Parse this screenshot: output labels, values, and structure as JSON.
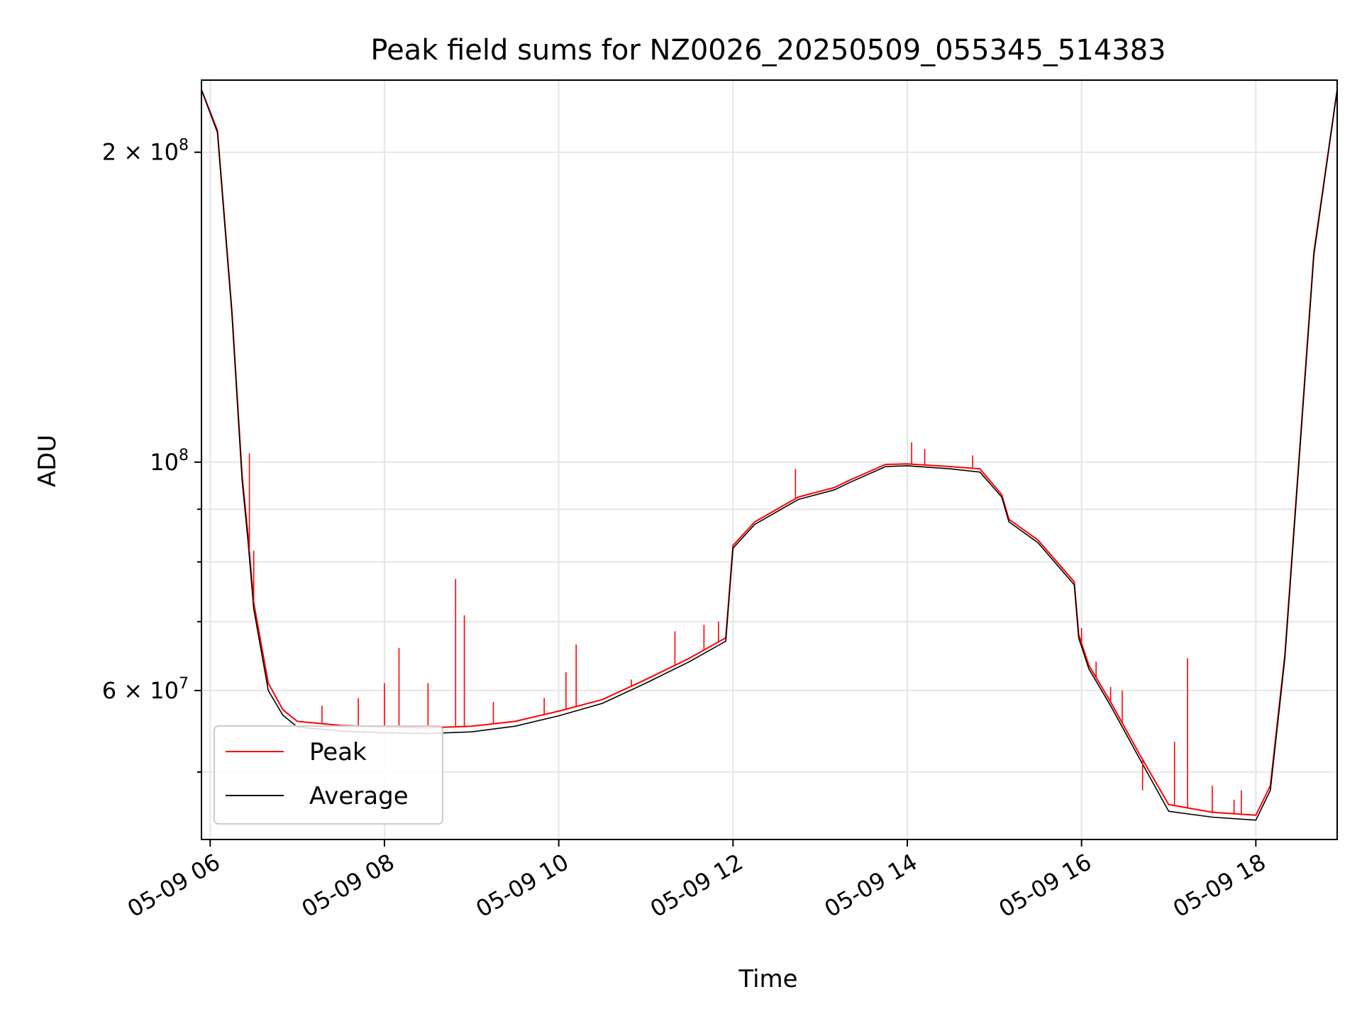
{
  "chart_data": {
    "type": "line",
    "title": "Peak field sums for NZ0026_20250509_055345_514383",
    "xlabel": "Time",
    "ylabel": "ADU",
    "y_scale": "log",
    "ylim": [
      43000000,
      235000000
    ],
    "xlim": [
      "05-09 05:54",
      "05-09 18:56"
    ],
    "x_ticks": [
      {
        "t": "05-09 06:00",
        "label": "05-09 06"
      },
      {
        "t": "05-09 08:00",
        "label": "05-09 08"
      },
      {
        "t": "05-09 10:00",
        "label": "05-09 10"
      },
      {
        "t": "05-09 12:00",
        "label": "05-09 12"
      },
      {
        "t": "05-09 14:00",
        "label": "05-09 14"
      },
      {
        "t": "05-09 16:00",
        "label": "05-09 16"
      },
      {
        "t": "05-09 18:00",
        "label": "05-09 18"
      }
    ],
    "y_major_ticks": [
      {
        "value": 60000000,
        "base": "6 × 10",
        "exp": "7"
      },
      {
        "value": 100000000,
        "base": "10",
        "exp": "8"
      },
      {
        "value": 200000000,
        "base": "2 × 10",
        "exp": "8"
      }
    ],
    "y_minor_ticks": [
      50000000,
      70000000,
      80000000,
      90000000
    ],
    "grid": true,
    "legend_position": "lower-left",
    "series": [
      {
        "name": "Peak",
        "color": "#ff0000",
        "x": [
          "05-09 05:54",
          "05-09 06:05",
          "05-09 06:15",
          "05-09 06:22",
          "05-09 06:26",
          "05-09 06:30",
          "05-09 06:40",
          "05-09 06:50",
          "05-09 07:00",
          "05-09 07:30",
          "05-09 08:00",
          "05-09 08:30",
          "05-09 09:00",
          "05-09 09:30",
          "05-09 10:00",
          "05-09 10:30",
          "05-09 11:00",
          "05-09 11:30",
          "05-09 11:55",
          "05-09 12:00",
          "05-09 12:15",
          "05-09 12:45",
          "05-09 13:10",
          "05-09 13:20",
          "05-09 13:45",
          "05-09 14:00",
          "05-09 14:30",
          "05-09 14:50",
          "05-09 15:05",
          "05-09 15:10",
          "05-09 15:30",
          "05-09 15:55",
          "05-09 15:58",
          "05-09 16:05",
          "05-09 16:20",
          "05-09 16:40",
          "05-09 17:00",
          "05-09 17:30",
          "05-09 17:50",
          "05-09 18:00",
          "05-09 18:10",
          "05-09 18:20",
          "05-09 18:40",
          "05-09 18:56"
        ],
        "y": [
          230000000,
          210000000,
          140000000,
          97000000,
          85000000,
          73000000,
          61000000,
          57500000,
          56000000,
          55500000,
          55300000,
          55200000,
          55400000,
          56000000,
          57300000,
          58800000,
          61500000,
          64500000,
          67500000,
          83000000,
          87500000,
          92500000,
          94500000,
          96000000,
          99500000,
          99600000,
          99000000,
          98500000,
          93000000,
          88000000,
          84000000,
          76500000,
          68000000,
          63500000,
          58500000,
          52000000,
          46500000,
          45700000,
          45500000,
          45400000,
          48500000,
          65000000,
          160000000,
          230000000
        ]
      },
      {
        "name": "Average",
        "color": "#000000",
        "x": [
          "05-09 05:54",
          "05-09 06:05",
          "05-09 06:15",
          "05-09 06:22",
          "05-09 06:26",
          "05-09 06:30",
          "05-09 06:40",
          "05-09 06:50",
          "05-09 07:00",
          "05-09 07:30",
          "05-09 08:00",
          "05-09 08:30",
          "05-09 09:00",
          "05-09 09:30",
          "05-09 10:00",
          "05-09 10:30",
          "05-09 11:00",
          "05-09 11:30",
          "05-09 11:55",
          "05-09 12:00",
          "05-09 12:15",
          "05-09 12:45",
          "05-09 13:10",
          "05-09 13:20",
          "05-09 13:45",
          "05-09 14:00",
          "05-09 14:30",
          "05-09 14:50",
          "05-09 15:05",
          "05-09 15:10",
          "05-09 15:30",
          "05-09 15:55",
          "05-09 15:58",
          "05-09 16:05",
          "05-09 16:20",
          "05-09 16:40",
          "05-09 17:00",
          "05-09 17:30",
          "05-09 17:50",
          "05-09 18:00",
          "05-09 18:10",
          "05-09 18:20",
          "05-09 18:40",
          "05-09 18:56"
        ],
        "y": [
          230000000,
          209000000,
          139000000,
          96000000,
          84000000,
          72000000,
          60000000,
          56800000,
          55300000,
          54800000,
          54600000,
          54500000,
          54700000,
          55400000,
          56700000,
          58300000,
          61000000,
          64000000,
          67000000,
          82500000,
          87000000,
          92000000,
          94000000,
          95500000,
          99000000,
          99200000,
          98500000,
          97800000,
          92500000,
          87500000,
          83500000,
          76000000,
          67500000,
          63000000,
          58000000,
          51500000,
          45800000,
          45200000,
          45000000,
          44900000,
          48000000,
          64500000,
          159000000,
          230000000
        ]
      }
    ],
    "spikes": [
      {
        "series": "Peak",
        "t": "05-09 06:27",
        "y": 102000000
      },
      {
        "series": "Peak",
        "t": "05-09 06:30",
        "y": 82000000
      },
      {
        "series": "Peak",
        "t": "05-09 07:17",
        "y": 58000000
      },
      {
        "series": "Peak",
        "t": "05-09 07:42",
        "y": 59000000
      },
      {
        "series": "Peak",
        "t": "05-09 08:00",
        "y": 61000000
      },
      {
        "series": "Peak",
        "t": "05-09 08:10",
        "y": 66000000
      },
      {
        "series": "Peak",
        "t": "05-09 08:30",
        "y": 61000000
      },
      {
        "series": "Peak",
        "t": "05-09 08:49",
        "y": 77000000
      },
      {
        "series": "Peak",
        "t": "05-09 08:55",
        "y": 71000000
      },
      {
        "series": "Peak",
        "t": "05-09 09:15",
        "y": 58500000
      },
      {
        "series": "Peak",
        "t": "05-09 09:50",
        "y": 59000000
      },
      {
        "series": "Peak",
        "t": "05-09 10:05",
        "y": 62500000
      },
      {
        "series": "Peak",
        "t": "05-09 10:12",
        "y": 66500000
      },
      {
        "series": "Peak",
        "t": "05-09 10:50",
        "y": 61500000
      },
      {
        "series": "Peak",
        "t": "05-09 11:20",
        "y": 68500000
      },
      {
        "series": "Peak",
        "t": "05-09 11:40",
        "y": 69500000
      },
      {
        "series": "Peak",
        "t": "05-09 11:50",
        "y": 70000000
      },
      {
        "series": "Peak",
        "t": "05-09 12:43",
        "y": 98500000
      },
      {
        "series": "Peak",
        "t": "05-09 14:03",
        "y": 104500000
      },
      {
        "series": "Peak",
        "t": "05-09 14:12",
        "y": 103000000
      },
      {
        "series": "Peak",
        "t": "05-09 14:45",
        "y": 101500000
      },
      {
        "series": "Peak",
        "t": "05-09 16:00",
        "y": 69000000
      },
      {
        "series": "Peak",
        "t": "05-09 16:10",
        "y": 64000000
      },
      {
        "series": "Peak",
        "t": "05-09 16:20",
        "y": 60500000
      },
      {
        "series": "Peak",
        "t": "05-09 16:28",
        "y": 60000000
      },
      {
        "series": "Peak",
        "t": "05-09 16:42",
        "y": 48000000
      },
      {
        "series": "Peak",
        "t": "05-09 17:04",
        "y": 53500000
      },
      {
        "series": "Peak",
        "t": "05-09 17:13",
        "y": 64500000
      },
      {
        "series": "Peak",
        "t": "05-09 17:30",
        "y": 48500000
      },
      {
        "series": "Peak",
        "t": "05-09 17:45",
        "y": 47000000
      },
      {
        "series": "Peak",
        "t": "05-09 17:50",
        "y": 48000000
      }
    ]
  }
}
